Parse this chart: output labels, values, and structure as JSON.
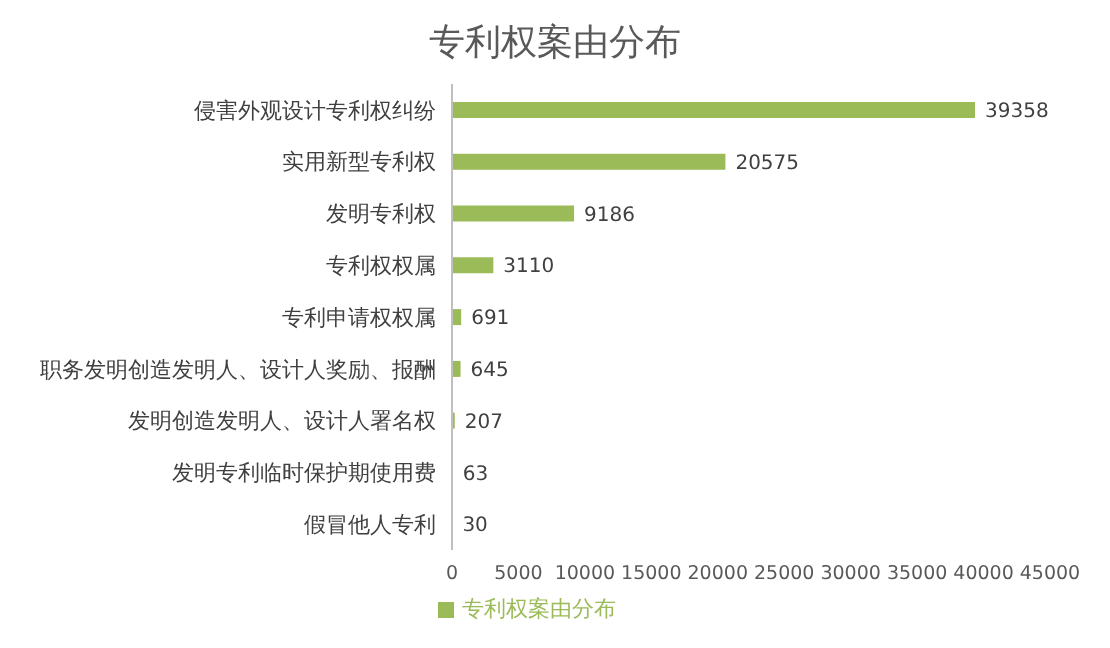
{
  "chart_data": {
    "type": "bar",
    "orientation": "horizontal",
    "title": "专利权案由分布",
    "categories": [
      "侵害外观设计专利权纠纷",
      "实用新型专利权",
      "发明专利权",
      "专利权权属",
      "专利申请权权属",
      "职务发明创造发明人、设计人奖励、报酬",
      "发明创造发明人、设计人署名权",
      "发明专利临时保护期使用费",
      "假冒他人专利"
    ],
    "series": [
      {
        "name": "专利权案由分布",
        "color": "#9bbb59",
        "values": [
          39358,
          20575,
          9186,
          3110,
          691,
          645,
          207,
          63,
          30
        ]
      }
    ],
    "xlim": [
      0,
      45000
    ],
    "xticks": [
      0,
      5000,
      10000,
      15000,
      20000,
      25000,
      30000,
      35000,
      40000,
      45000
    ],
    "data_labels": true,
    "legend": "bottom",
    "grid": false
  }
}
